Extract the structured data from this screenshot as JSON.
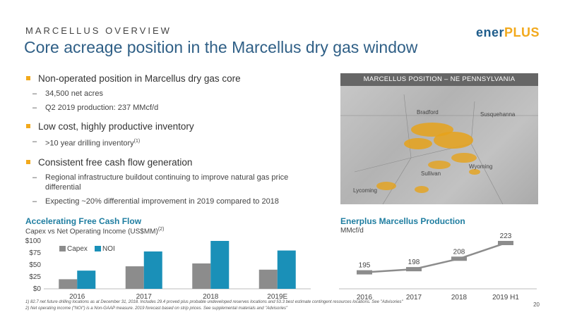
{
  "header": {
    "kicker": "MARCELLUS OVERVIEW",
    "title": "Core acreage position in the Marcellus dry gas window",
    "logo_part1": "ener",
    "logo_part2": "PLUS"
  },
  "bullets": [
    {
      "text": "Non-operated position in Marcellus dry gas core",
      "subs": [
        "34,500 net acres",
        "Q2 2019 production: 237 MMcf/d"
      ]
    },
    {
      "text": "Low cost, highly productive inventory",
      "subs": [
        ">10 year drilling inventory"
      ],
      "sub_sup": "(1)"
    },
    {
      "text": "Consistent free cash flow generation",
      "subs": [
        "Regional infrastructure buildout continuing to improve natural gas price differential",
        "Expecting ~20% differential improvement in 2019 compared to 2018"
      ]
    }
  ],
  "map": {
    "title": "MARCELLUS POSITION – NE PENNSYLVANIA",
    "labels": [
      "Bradford",
      "Susquehanna",
      "Wyoming",
      "Sullivan",
      "Lycoming"
    ]
  },
  "left_chart": {
    "title": "Accelerating Free Cash Flow",
    "subtitle": "Capex vs Net Operating Income (US$MM)",
    "subtitle_sup": "(2)"
  },
  "right_chart": {
    "title": "Enerplus Marcellus Production",
    "subtitle": "MMcf/d"
  },
  "chart_data": [
    {
      "type": "bar",
      "categories": [
        "2016",
        "2017",
        "2018",
        "2019E"
      ],
      "series": [
        {
          "name": "Capex",
          "values": [
            20,
            47,
            53,
            40
          ],
          "color": "#8c8c8c"
        },
        {
          "name": "NOI",
          "values": [
            38,
            78,
            100,
            80
          ],
          "color": "#1a90b8"
        }
      ],
      "ylim": [
        0,
        100
      ],
      "yticks": [
        "$0",
        "$25",
        "$50",
        "$75",
        "$100"
      ],
      "legend": "top-left"
    },
    {
      "type": "line",
      "x": [
        "2016",
        "2017",
        "2018",
        "2019 H1"
      ],
      "values": [
        195,
        198,
        208,
        223
      ],
      "color": "#8c8c8c"
    }
  ],
  "footnotes": [
    "1)  82.7 net future drilling locations as at December 31, 2018. Includes 29.4 proved plus probable undeveloped reserves locations and 53.3 best estimate contingent resources locations. See \"Advisories\"",
    "2)  Net operating income (\"NOI\") is a Non-GAAP measure. 2019 forecast based on strip prices. See supplemental materials and \"Advisories\""
  ],
  "page_number": "20"
}
